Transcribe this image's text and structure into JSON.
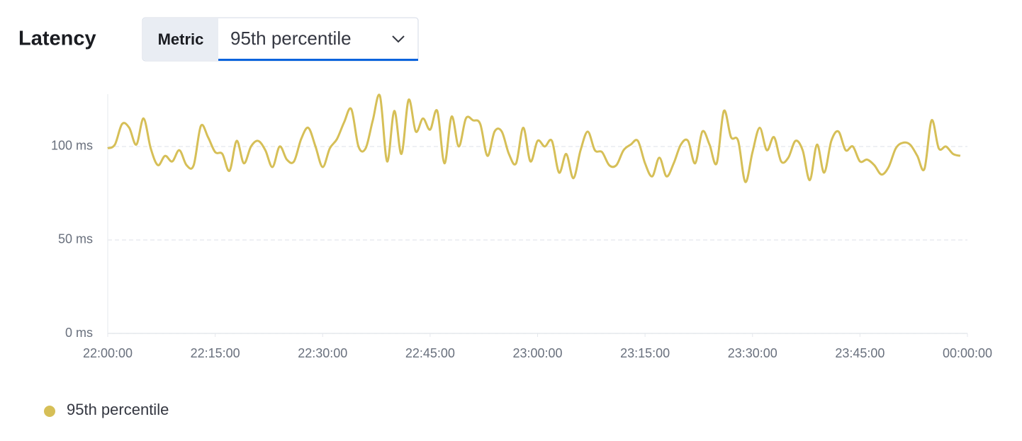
{
  "metric_select": {
    "label": "Metric",
    "value": "95th percentile"
  },
  "chart_data": {
    "type": "line",
    "title": "Latency",
    "x": [
      "22:00:00",
      "22:01:00",
      "22:02:00",
      "22:03:00",
      "22:04:00",
      "22:05:00",
      "22:06:00",
      "22:07:00",
      "22:08:00",
      "22:09:00",
      "22:10:00",
      "22:11:00",
      "22:12:00",
      "22:13:00",
      "22:14:00",
      "22:15:00",
      "22:16:00",
      "22:17:00",
      "22:18:00",
      "22:19:00",
      "22:20:00",
      "22:21:00",
      "22:22:00",
      "22:23:00",
      "22:24:00",
      "22:25:00",
      "22:26:00",
      "22:27:00",
      "22:28:00",
      "22:29:00",
      "22:30:00",
      "22:31:00",
      "22:32:00",
      "22:33:00",
      "22:34:00",
      "22:35:00",
      "22:36:00",
      "22:37:00",
      "22:38:00",
      "22:39:00",
      "22:40:00",
      "22:41:00",
      "22:42:00",
      "22:43:00",
      "22:44:00",
      "22:45:00",
      "22:46:00",
      "22:47:00",
      "22:48:00",
      "22:49:00",
      "22:50:00",
      "22:51:00",
      "22:52:00",
      "22:53:00",
      "22:54:00",
      "22:55:00",
      "22:56:00",
      "22:57:00",
      "22:58:00",
      "22:59:00",
      "23:00:00",
      "23:01:00",
      "23:02:00",
      "23:03:00",
      "23:04:00",
      "23:05:00",
      "23:06:00",
      "23:07:00",
      "23:08:00",
      "23:09:00",
      "23:10:00",
      "23:11:00",
      "23:12:00",
      "23:13:00",
      "23:14:00",
      "23:15:00",
      "23:16:00",
      "23:17:00",
      "23:18:00",
      "23:19:00",
      "23:20:00",
      "23:21:00",
      "23:22:00",
      "23:23:00",
      "23:24:00",
      "23:25:00",
      "23:26:00",
      "23:27:00",
      "23:28:00",
      "23:29:00",
      "23:30:00",
      "23:31:00",
      "23:32:00",
      "23:33:00",
      "23:34:00",
      "23:35:00",
      "23:36:00",
      "23:37:00",
      "23:38:00",
      "23:39:00",
      "23:40:00",
      "23:41:00",
      "23:42:00",
      "23:43:00",
      "23:44:00",
      "23:45:00",
      "23:46:00",
      "23:47:00",
      "23:48:00",
      "23:49:00",
      "23:50:00",
      "23:51:00",
      "23:52:00",
      "23:53:00",
      "23:54:00",
      "23:55:00",
      "23:56:00",
      "23:57:00",
      "23:58:00",
      "23:59:00"
    ],
    "series": [
      {
        "name": "95th percentile",
        "color": "#d6bf57",
        "values": [
          99,
          101,
          112,
          110,
          101,
          115,
          99,
          90,
          95,
          92,
          98,
          90,
          90,
          111,
          105,
          97,
          96,
          87,
          103,
          91,
          100,
          103,
          98,
          89,
          100,
          93,
          92,
          104,
          110,
          100,
          89,
          99,
          104,
          113,
          120,
          100,
          99,
          114,
          127,
          92,
          119,
          96,
          125,
          108,
          115,
          109,
          119,
          91,
          116,
          100,
          115,
          114,
          112,
          95,
          108,
          108,
          96,
          91,
          110,
          92,
          103,
          100,
          103,
          86,
          96,
          83,
          98,
          108,
          98,
          97,
          90,
          90,
          98,
          101,
          103,
          91,
          84,
          94,
          84,
          91,
          101,
          103,
          91,
          108,
          101,
          91,
          119,
          105,
          103,
          81,
          97,
          110,
          98,
          105,
          92,
          94,
          103,
          98,
          82,
          101,
          86,
          103,
          108,
          98,
          100,
          92,
          93,
          90,
          85,
          89,
          99,
          102,
          101,
          95,
          88,
          114,
          99,
          100,
          96,
          95
        ]
      }
    ],
    "xlim": [
      "22:00:00",
      "00:00:00"
    ],
    "xticks": [
      "22:00:00",
      "22:15:00",
      "22:30:00",
      "22:45:00",
      "23:00:00",
      "23:15:00",
      "23:30:00",
      "23:45:00",
      "00:00:00"
    ],
    "ylim": [
      0,
      128
    ],
    "yticks": [
      {
        "value": 0,
        "label": "0 ms"
      },
      {
        "value": 50,
        "label": "50 ms"
      },
      {
        "value": 100,
        "label": "100 ms"
      }
    ],
    "grid": true,
    "legend": "bottom-left"
  }
}
